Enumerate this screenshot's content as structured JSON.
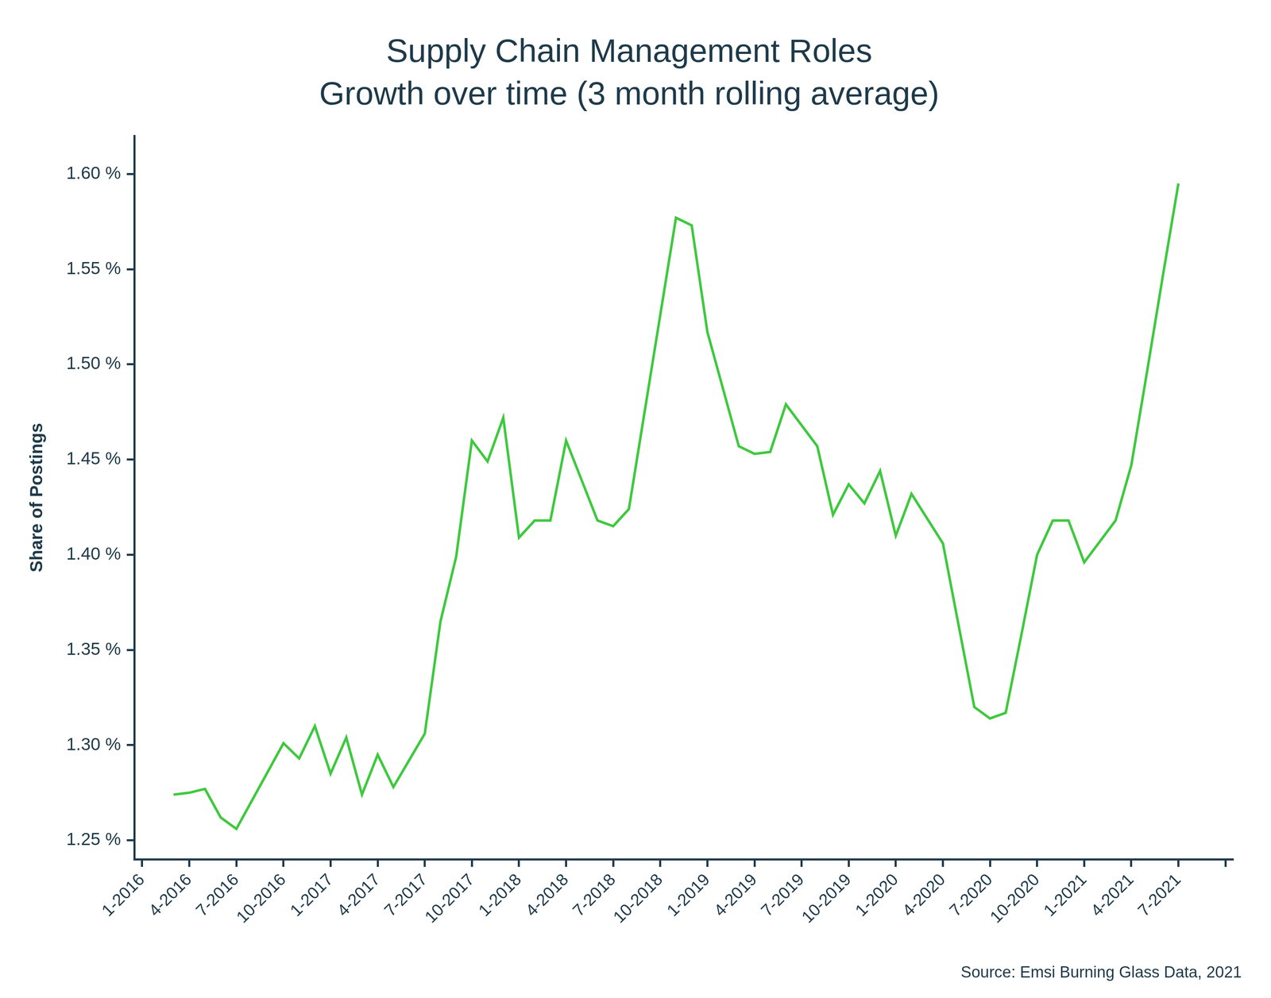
{
  "chart_data": {
    "type": "line",
    "title": "Supply Chain Management Roles",
    "subtitle": "Growth over time (3 month rolling average)",
    "y_label": "Share of Postings",
    "source": "Source: Emsi Burning Glass Data, 2021",
    "categories": [
      "1-2016",
      null,
      null,
      "4-2016",
      null,
      null,
      "7-2016",
      null,
      null,
      "10-2016",
      null,
      null,
      "1-2017",
      null,
      null,
      "4-2017",
      null,
      null,
      "7-2017",
      null,
      null,
      "10-2017",
      null,
      null,
      "1-2018",
      null,
      null,
      "4-2018",
      null,
      null,
      "7-2018",
      null,
      null,
      "10-2018",
      null,
      null,
      "1-2019",
      null,
      null,
      "4-2019",
      null,
      null,
      "7-2019",
      null,
      null,
      "10-2019",
      null,
      null,
      "1-2020",
      null,
      null,
      "4-2020",
      null,
      null,
      "7-2020",
      null,
      null,
      "10-2020",
      null,
      null,
      "1-2021",
      null,
      null,
      "4-2021",
      null,
      null,
      "7-2021",
      null,
      null,
      null
    ],
    "values": [
      null,
      null,
      1.274,
      1.275,
      1.277,
      1.262,
      1.256,
      1.271,
      1.286,
      1.301,
      1.293,
      1.31,
      1.285,
      1.304,
      1.274,
      1.295,
      1.278,
      1.292,
      1.306,
      1.365,
      1.399,
      1.46,
      1.449,
      1.472,
      1.409,
      1.418,
      1.418,
      1.46,
      1.439,
      1.418,
      1.415,
      1.424,
      1.475,
      1.526,
      1.577,
      1.573,
      1.517,
      1.487,
      1.457,
      1.453,
      1.454,
      1.479,
      1.468,
      1.457,
      1.421,
      1.437,
      1.427,
      1.444,
      1.41,
      1.432,
      1.419,
      1.406,
      1.363,
      1.32,
      1.314,
      1.317,
      1.358,
      1.4,
      1.418,
      1.418,
      1.396,
      1.407,
      1.418,
      1.447,
      1.496,
      1.546,
      1.595,
      null,
      null,
      null
    ],
    "color": "#3ec93e",
    "ylim": [
      1.24,
      1.62
    ],
    "yticks": [
      {
        "value": 1.25,
        "label": "1.25 %"
      },
      {
        "value": 1.3,
        "label": "1.30 %"
      },
      {
        "value": 1.35,
        "label": "1.35 %"
      },
      {
        "value": 1.4,
        "label": "1.40 %"
      },
      {
        "value": 1.45,
        "label": "1.45 %"
      },
      {
        "value": 1.5,
        "label": "1.50 %"
      },
      {
        "value": 1.55,
        "label": "1.55 %"
      },
      {
        "value": 1.6,
        "label": "1.60 %"
      }
    ],
    "grid": false,
    "legend": false
  }
}
